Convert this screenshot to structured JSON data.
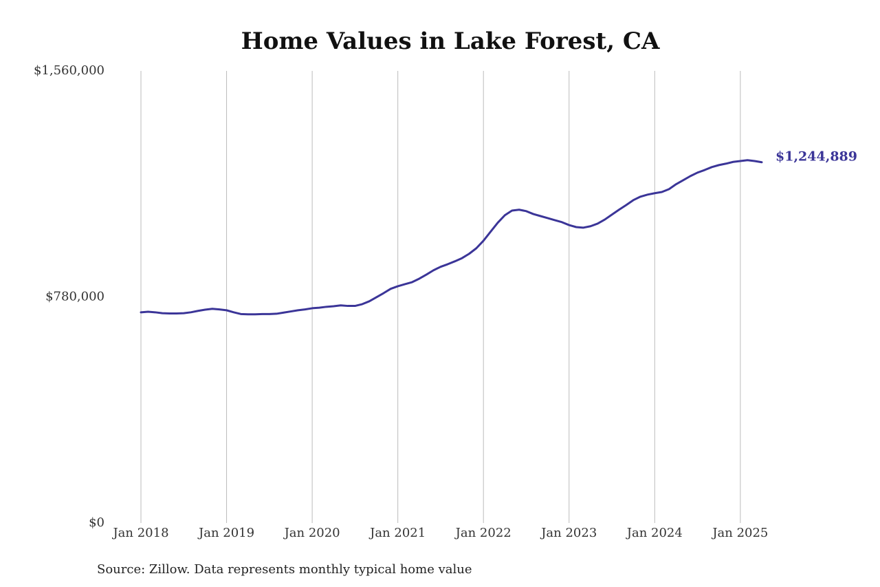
{
  "chart_data": {
    "type": "line",
    "title": "Home Values in Lake Forest, CA",
    "caption": "Source: Zillow. Data represents monthly typical home value",
    "x": [
      "2018-01",
      "2018-02",
      "2018-03",
      "2018-04",
      "2018-05",
      "2018-06",
      "2018-07",
      "2018-08",
      "2018-09",
      "2018-10",
      "2018-11",
      "2018-12",
      "2019-01",
      "2019-02",
      "2019-03",
      "2019-04",
      "2019-05",
      "2019-06",
      "2019-07",
      "2019-08",
      "2019-09",
      "2019-10",
      "2019-11",
      "2019-12",
      "2020-01",
      "2020-02",
      "2020-03",
      "2020-04",
      "2020-05",
      "2020-06",
      "2020-07",
      "2020-08",
      "2020-09",
      "2020-10",
      "2020-11",
      "2020-12",
      "2021-01",
      "2021-02",
      "2021-03",
      "2021-04",
      "2021-05",
      "2021-06",
      "2021-07",
      "2021-08",
      "2021-09",
      "2021-10",
      "2021-11",
      "2021-12",
      "2022-01",
      "2022-02",
      "2022-03",
      "2022-04",
      "2022-05",
      "2022-06",
      "2022-07",
      "2022-08",
      "2022-09",
      "2022-10",
      "2022-11",
      "2022-12",
      "2023-01",
      "2023-02",
      "2023-03",
      "2023-04",
      "2023-05",
      "2023-06",
      "2023-07",
      "2023-08",
      "2023-09",
      "2023-10",
      "2023-11",
      "2023-12",
      "2024-01",
      "2024-02",
      "2024-03",
      "2024-04",
      "2024-05",
      "2024-06",
      "2024-07",
      "2024-08",
      "2024-09",
      "2024-10",
      "2024-11",
      "2024-12",
      "2025-01",
      "2025-02",
      "2025-03",
      "2025-04"
    ],
    "series": [
      {
        "color": "#3b3598",
        "values": [
          727000,
          729000,
          727000,
          724000,
          723000,
          723000,
          724000,
          727000,
          732000,
          736000,
          739000,
          737000,
          734000,
          727000,
          721000,
          720000,
          720000,
          721000,
          721000,
          722000,
          726000,
          730000,
          734000,
          737000,
          741000,
          743000,
          746000,
          748000,
          751000,
          749000,
          749000,
          755000,
          765000,
          779000,
          793000,
          808000,
          817000,
          824000,
          831000,
          843000,
          857000,
          872000,
          884000,
          893000,
          903000,
          914000,
          929000,
          948000,
          974000,
          1005000,
          1036000,
          1062000,
          1078000,
          1081000,
          1076000,
          1066000,
          1059000,
          1052000,
          1045000,
          1038000,
          1028000,
          1021000,
          1019000,
          1024000,
          1033000,
          1047000,
          1064000,
          1081000,
          1097000,
          1114000,
          1126000,
          1133000,
          1138000,
          1142000,
          1152000,
          1169000,
          1183000,
          1197000,
          1209000,
          1218000,
          1228000,
          1235000,
          1240000,
          1246000,
          1249000,
          1252000,
          1249000,
          1244889
        ],
        "value_labels": [
          null,
          null,
          null,
          null,
          null,
          null,
          null,
          null,
          null,
          null,
          null,
          null,
          null,
          null,
          null,
          null,
          null,
          null,
          null,
          null,
          null,
          null,
          null,
          null,
          null,
          null,
          null,
          null,
          null,
          null,
          null,
          null,
          null,
          null,
          null,
          null,
          null,
          null,
          null,
          null,
          null,
          null,
          null,
          null,
          null,
          null,
          null,
          null,
          null,
          null,
          null,
          null,
          null,
          null,
          null,
          null,
          null,
          null,
          null,
          null,
          null,
          null,
          null,
          null,
          null,
          null,
          null,
          null,
          null,
          null,
          null,
          null,
          null,
          null,
          null,
          null,
          null,
          null,
          null,
          null,
          null,
          null,
          null,
          null,
          null,
          null,
          null,
          "$1,244,889"
        ]
      }
    ],
    "xlim": [
      "2018-01",
      "2025-04"
    ],
    "xticks": [
      {
        "value": "2018-01",
        "label": "Jan 2018"
      },
      {
        "value": "2019-01",
        "label": "Jan 2019"
      },
      {
        "value": "2020-01",
        "label": "Jan 2020"
      },
      {
        "value": "2021-01",
        "label": "Jan 2021"
      },
      {
        "value": "2022-01",
        "label": "Jan 2022"
      },
      {
        "value": "2023-01",
        "label": "Jan 2023"
      },
      {
        "value": "2024-01",
        "label": "Jan 2024"
      },
      {
        "value": "2025-01",
        "label": "Jan 2025"
      }
    ],
    "ylim": [
      0,
      1560000
    ],
    "yticks": [
      {
        "value": 0,
        "label": "$0"
      },
      {
        "value": 780000,
        "label": "$780,000"
      },
      {
        "value": 1560000,
        "label": "$1,560,000"
      }
    ],
    "grid": "x"
  }
}
